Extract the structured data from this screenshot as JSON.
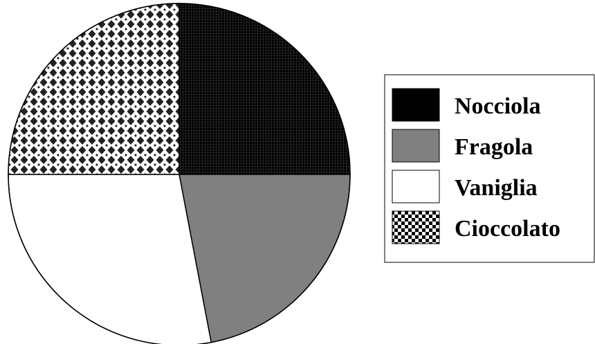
{
  "chart_data": {
    "type": "pie",
    "title": "",
    "start_angle_deg": 90,
    "direction": "clockwise",
    "slices": [
      {
        "label": "Nocciola",
        "value": 25,
        "fill": "#000000",
        "pattern": "dense-grid"
      },
      {
        "label": "Fragola",
        "value": 22,
        "fill": "#808080",
        "pattern": "solid"
      },
      {
        "label": "Vaniglia",
        "value": 28,
        "fill": "#ffffff",
        "pattern": "solid"
      },
      {
        "label": "Cioccolato",
        "value": 25,
        "fill": "#ffffff",
        "pattern": "diamond-check"
      }
    ],
    "legend": {
      "placement": "right",
      "entries": [
        "Nocciola",
        "Fragola",
        "Vaniglia",
        "Cioccolato"
      ]
    }
  }
}
